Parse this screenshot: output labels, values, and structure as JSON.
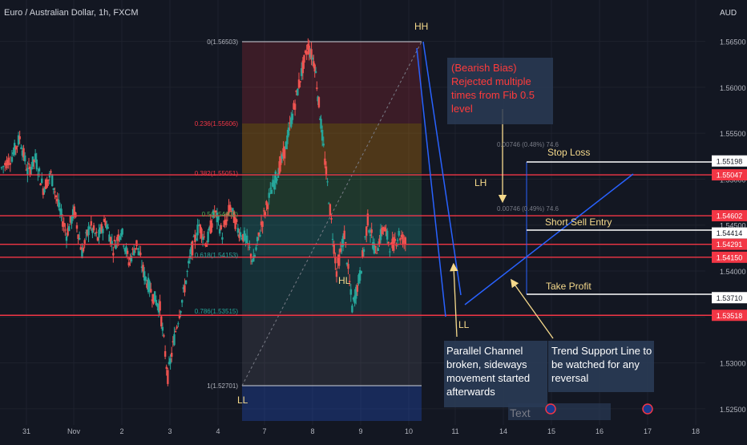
{
  "header": {
    "symbol_title": "Euro / Australian Dollar, 1h, FXCM",
    "currency": "AUD"
  },
  "colors": {
    "background": "#131722",
    "grid": "#1e222d",
    "up_candle": "#26a69a",
    "down_candle": "#ef5350",
    "red_line": "#f23645",
    "white_line": "#ffffff",
    "blue_line": "#2962ff",
    "annotation_text": "#f5d98b",
    "callout_bg": "#2a3b55",
    "callout_red_text": "#ff3b3b"
  },
  "chart_data": {
    "type": "candlestick",
    "title": "Euro / Australian Dollar, 1h, FXCM",
    "y_axis": {
      "unit": "AUD",
      "range": [
        1.5215,
        1.5695
      ],
      "ticks": [
        "1.56500",
        "1.56000",
        "1.55500",
        "1.55000",
        "1.54500",
        "1.54000",
        "1.53500",
        "1.53000",
        "1.52500"
      ]
    },
    "x_axis": {
      "ticks": [
        "31",
        "Nov",
        "2",
        "3",
        "4",
        "7",
        "8",
        "9",
        "10",
        "11",
        "14",
        "15",
        "16",
        "17",
        "18"
      ]
    },
    "price_levels": [
      {
        "label": "1.55198",
        "value": 1.55198,
        "style": "white"
      },
      {
        "label": "1.55047",
        "value": 1.55047,
        "style": "red"
      },
      {
        "label": "1.54602",
        "value": 1.54602,
        "style": "red"
      },
      {
        "label": "1.54414",
        "value": 1.54414,
        "style": "white"
      },
      {
        "label": "1.54291",
        "value": 1.54291,
        "style": "red"
      },
      {
        "label": "1.54150",
        "value": 1.5415,
        "style": "red"
      },
      {
        "label": "1.53710",
        "value": 1.5371,
        "style": "white"
      },
      {
        "label": "1.53518",
        "value": 1.53518,
        "style": "red"
      }
    ],
    "fibonacci": [
      {
        "label": "0(1.56503)",
        "ratio": 0,
        "value": 1.56503
      },
      {
        "label": "0.236(1.55606)",
        "ratio": 0.236,
        "value": 1.55606
      },
      {
        "label": "0.382(1.55051)",
        "ratio": 0.382,
        "value": 1.55051
      },
      {
        "label": "0.5(1.54602)",
        "ratio": 0.5,
        "value": 1.54602
      },
      {
        "label": "0.618(1.54153)",
        "ratio": 0.618,
        "value": 1.54153
      },
      {
        "label": "0.786(1.53515)",
        "ratio": 0.786,
        "value": 1.53515
      },
      {
        "label": "1(1.52701)",
        "ratio": 1,
        "value": 1.52701
      }
    ],
    "structure_labels": [
      "HH",
      "HL",
      "LL",
      "LH",
      "LL"
    ],
    "trade_labels": {
      "stop_loss": "Stop Loss",
      "entry": "Short Sell Entry",
      "take_profit": "Take Profit"
    },
    "measure_labels": [
      "0.00746 (0.48%) 74.6",
      "0.00746 (0.49%) 74.6"
    ],
    "callouts": {
      "bearish": "(Bearish Bias)\nRejected multiple\ntimes from Fib 0.5\nlevel",
      "channel": "Parallel Channel\nbroken, sideways\nmovement started\nafterwards",
      "trend": "Trend Support Line to\nbe watched for any\nreversal"
    },
    "text_box": "Text",
    "series": [
      {
        "x": 0,
        "close": 1.5512
      },
      {
        "x": 0.02,
        "close": 1.5525
      },
      {
        "x": 0.035,
        "close": 1.5545
      },
      {
        "x": 0.05,
        "close": 1.5508
      },
      {
        "x": 0.065,
        "close": 1.5522
      },
      {
        "x": 0.08,
        "close": 1.549
      },
      {
        "x": 0.095,
        "close": 1.5505
      },
      {
        "x": 0.11,
        "close": 1.547
      },
      {
        "x": 0.125,
        "close": 1.544
      },
      {
        "x": 0.14,
        "close": 1.5465
      },
      {
        "x": 0.155,
        "close": 1.542
      },
      {
        "x": 0.17,
        "close": 1.545
      },
      {
        "x": 0.185,
        "close": 1.5435
      },
      {
        "x": 0.2,
        "close": 1.5455
      },
      {
        "x": 0.215,
        "close": 1.5425
      },
      {
        "x": 0.23,
        "close": 1.5445
      },
      {
        "x": 0.245,
        "close": 1.541
      },
      {
        "x": 0.26,
        "close": 1.543
      },
      {
        "x": 0.275,
        "close": 1.5395
      },
      {
        "x": 0.29,
        "close": 1.5375
      },
      {
        "x": 0.305,
        "close": 1.536
      },
      {
        "x": 0.32,
        "close": 1.5285
      },
      {
        "x": 0.335,
        "close": 1.5335
      },
      {
        "x": 0.35,
        "close": 1.5375
      },
      {
        "x": 0.365,
        "close": 1.542
      },
      {
        "x": 0.38,
        "close": 1.545
      },
      {
        "x": 0.395,
        "close": 1.543
      },
      {
        "x": 0.41,
        "close": 1.5465
      },
      {
        "x": 0.425,
        "close": 1.544
      },
      {
        "x": 0.44,
        "close": 1.547
      },
      {
        "x": 0.455,
        "close": 1.5445
      },
      {
        "x": 0.47,
        "close": 1.5435
      },
      {
        "x": 0.485,
        "close": 1.541
      },
      {
        "x": 0.5,
        "close": 1.545
      },
      {
        "x": 0.515,
        "close": 1.548
      },
      {
        "x": 0.53,
        "close": 1.5505
      },
      {
        "x": 0.545,
        "close": 1.553
      },
      {
        "x": 0.56,
        "close": 1.557
      },
      {
        "x": 0.575,
        "close": 1.561
      },
      {
        "x": 0.59,
        "close": 1.5645
      },
      {
        "x": 0.603,
        "close": 1.5625
      },
      {
        "x": 0.615,
        "close": 1.556
      },
      {
        "x": 0.63,
        "close": 1.548
      },
      {
        "x": 0.645,
        "close": 1.54
      },
      {
        "x": 0.66,
        "close": 1.544
      },
      {
        "x": 0.675,
        "close": 1.536
      },
      {
        "x": 0.69,
        "close": 1.5395
      },
      {
        "x": 0.705,
        "close": 1.5455
      },
      {
        "x": 0.72,
        "close": 1.542
      },
      {
        "x": 0.735,
        "close": 1.5448
      },
      {
        "x": 0.75,
        "close": 1.5425
      },
      {
        "x": 0.765,
        "close": 1.544
      },
      {
        "x": 0.78,
        "close": 1.543
      }
    ]
  }
}
